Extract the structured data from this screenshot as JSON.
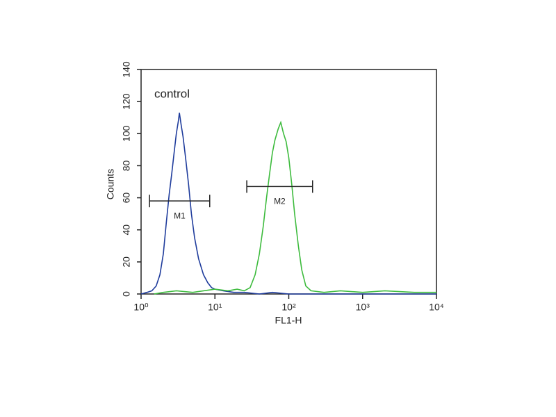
{
  "chart_data": {
    "type": "line",
    "xscale": "log",
    "annotation": "control",
    "xlabel": "FL1-H",
    "ylabel": "Counts",
    "xlim": [
      1,
      10000
    ],
    "ylim": [
      0,
      140
    ],
    "xticks": [
      {
        "value": 1,
        "label": "10⁰"
      },
      {
        "value": 10,
        "label": "10¹"
      },
      {
        "value": 100,
        "label": "10²"
      },
      {
        "value": 1000,
        "label": "10³"
      },
      {
        "value": 10000,
        "label": "10⁴"
      }
    ],
    "yticks": [
      0,
      20,
      40,
      60,
      80,
      100,
      120,
      140
    ],
    "series": [
      {
        "color": "#1f3c9c",
        "x": [
          1.0,
          1.2,
          1.4,
          1.6,
          1.8,
          2.0,
          2.2,
          2.4,
          2.6,
          2.8,
          3.0,
          3.2,
          3.3,
          3.5,
          3.7,
          4.0,
          4.4,
          4.8,
          5.3,
          6.0,
          7.0,
          8.0,
          9.0,
          10,
          13,
          18,
          25,
          40,
          60,
          100,
          200,
          1000,
          10000
        ],
        "values": [
          0,
          1,
          2,
          5,
          12,
          25,
          45,
          62,
          75,
          88,
          100,
          108,
          113,
          105,
          98,
          85,
          68,
          50,
          35,
          22,
          12,
          7,
          4,
          3,
          2,
          1,
          1,
          0,
          1,
          0,
          0,
          0,
          0
        ]
      },
      {
        "color": "#3dbb3d",
        "x": [
          1.5,
          2,
          3,
          5,
          10,
          15,
          20,
          25,
          30,
          35,
          40,
          45,
          50,
          55,
          60,
          65,
          72,
          78,
          85,
          92,
          100,
          110,
          120,
          135,
          150,
          170,
          200,
          300,
          500,
          1000,
          2000,
          5000,
          10000
        ],
        "values": [
          0,
          1,
          2,
          1,
          3,
          2,
          3,
          2,
          4,
          12,
          25,
          42,
          60,
          75,
          88,
          96,
          103,
          107,
          100,
          95,
          85,
          68,
          50,
          30,
          15,
          5,
          2,
          1,
          2,
          1,
          2,
          1,
          1
        ]
      }
    ],
    "markers": [
      {
        "label": "M1",
        "range": [
          1.3,
          8.5
        ],
        "y": 58
      },
      {
        "label": "M2",
        "range": [
          27,
          210
        ],
        "y": 67
      }
    ]
  }
}
